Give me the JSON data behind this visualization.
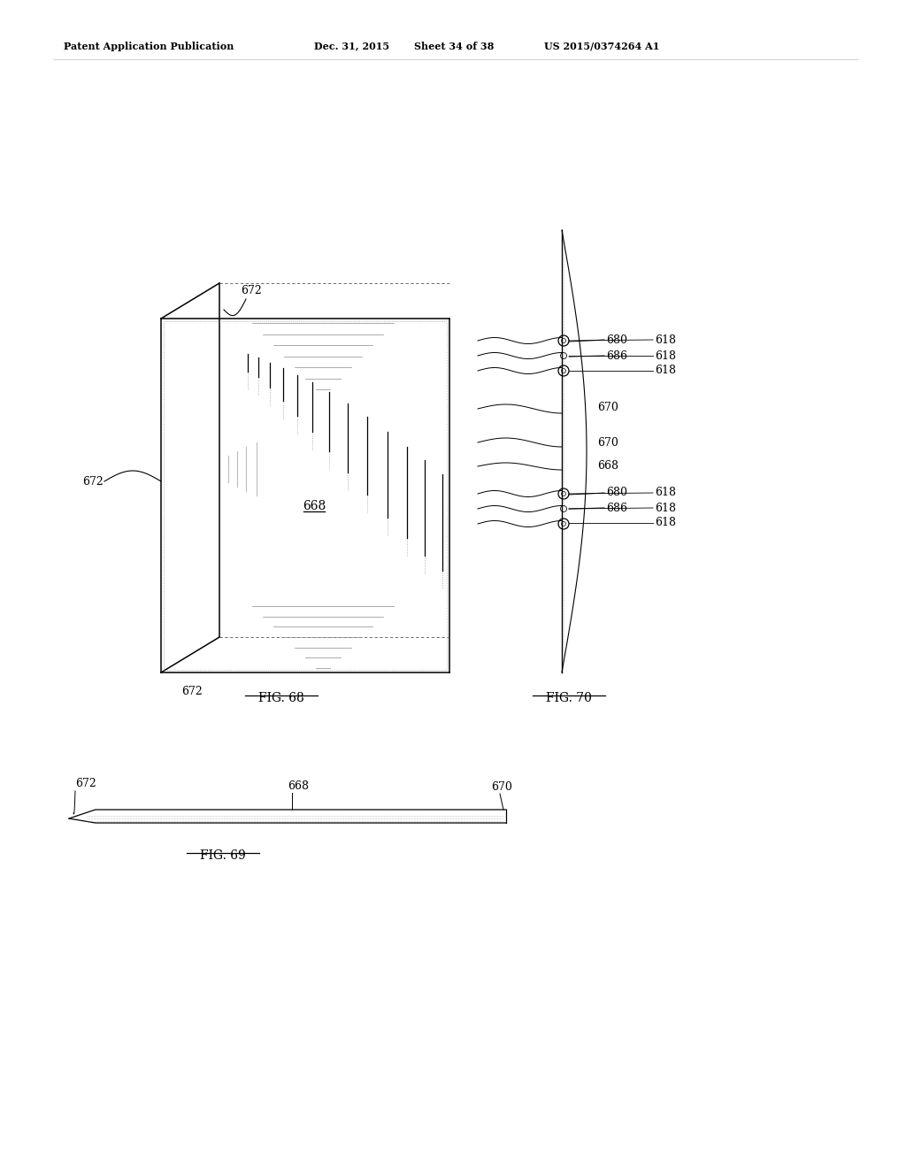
{
  "bg_color": "#ffffff",
  "lc": "#000000",
  "gray": "#888888",
  "dgray": "#555555",
  "header_left": "Patent Application Publication",
  "header_mid1": "Dec. 31, 2015",
  "header_mid2": "Sheet 34 of 38",
  "header_right": "US 2015/0374264 A1",
  "fig68": "FIG. 68",
  "fig69": "FIG. 69",
  "fig70": "FIG. 70"
}
